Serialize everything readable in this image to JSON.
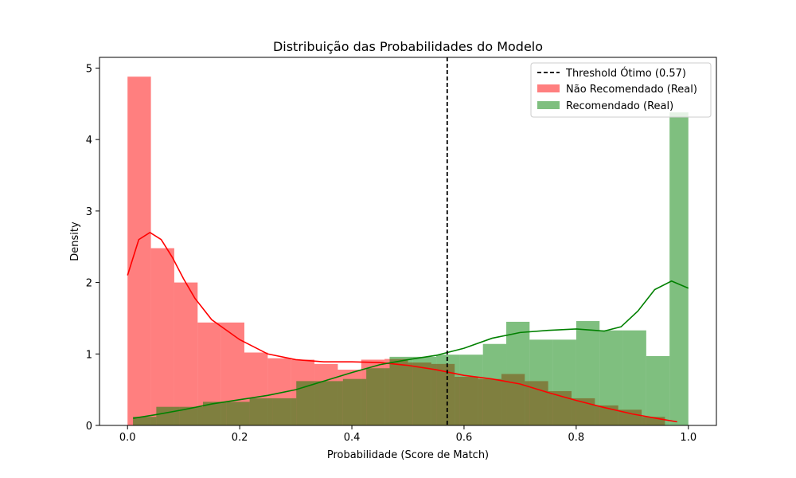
{
  "chart_data": {
    "type": "bar",
    "title": "Distribuição das Probabilidades do Modelo",
    "xlabel": "Probabilidade (Score de Match)",
    "ylabel": "Density",
    "xlim": [
      -0.05,
      1.05
    ],
    "ylim": [
      0,
      5.15
    ],
    "xticks": [
      0.0,
      0.2,
      0.4,
      0.6,
      0.8,
      1.0
    ],
    "yticks": [
      0,
      1,
      2,
      3,
      4,
      5
    ],
    "grid": false,
    "legend_position": "upper-right",
    "threshold": {
      "label": "Threshold Ótimo (0.57)",
      "value": 0.57,
      "color": "#000000"
    },
    "series": [
      {
        "name": "Não Recomendado (Real)",
        "color": "#ff0000",
        "bar_alpha": 0.5,
        "bin_edges": [
          0.0,
          0.0417,
          0.0833,
          0.125,
          0.1667,
          0.2083,
          0.25,
          0.2917,
          0.3333,
          0.375,
          0.4167,
          0.4583,
          0.5,
          0.5417,
          0.5833,
          0.625,
          0.6667,
          0.7083,
          0.75,
          0.7917,
          0.8333,
          0.875,
          0.9167,
          0.9583
        ],
        "values": [
          4.88,
          2.48,
          2.0,
          1.44,
          1.44,
          1.02,
          0.94,
          0.92,
          0.86,
          0.78,
          0.92,
          0.93,
          0.88,
          0.86,
          0.68,
          0.65,
          0.72,
          0.62,
          0.48,
          0.38,
          0.28,
          0.22,
          0.12
        ],
        "kde_x": [
          0.0,
          0.02,
          0.04,
          0.06,
          0.08,
          0.1,
          0.12,
          0.15,
          0.2,
          0.25,
          0.3,
          0.35,
          0.4,
          0.45,
          0.5,
          0.55,
          0.6,
          0.65,
          0.7,
          0.75,
          0.8,
          0.85,
          0.9,
          0.95,
          0.98
        ],
        "kde_y": [
          2.1,
          2.6,
          2.7,
          2.6,
          2.35,
          2.05,
          1.78,
          1.48,
          1.2,
          1.0,
          0.92,
          0.89,
          0.89,
          0.88,
          0.84,
          0.78,
          0.7,
          0.65,
          0.58,
          0.46,
          0.35,
          0.25,
          0.16,
          0.09,
          0.05
        ]
      },
      {
        "name": "Recomendado (Real)",
        "color": "#008000",
        "bar_alpha": 0.5,
        "bin_edges": [
          0.0097,
          0.0513,
          0.0929,
          0.1345,
          0.1761,
          0.2177,
          0.2593,
          0.3009,
          0.3425,
          0.3841,
          0.4257,
          0.4673,
          0.5089,
          0.5505,
          0.5921,
          0.6337,
          0.6753,
          0.7169,
          0.7585,
          0.8001,
          0.8417,
          0.8833,
          0.9249,
          0.9665,
          1.0
        ],
        "values": [
          0.12,
          0.26,
          0.26,
          0.33,
          0.33,
          0.38,
          0.38,
          0.62,
          0.62,
          0.65,
          0.8,
          0.96,
          0.96,
          0.99,
          0.99,
          1.14,
          1.45,
          1.2,
          1.2,
          1.46,
          1.33,
          1.33,
          0.97,
          4.38
        ],
        "kde_x": [
          0.01,
          0.05,
          0.1,
          0.15,
          0.2,
          0.25,
          0.3,
          0.35,
          0.4,
          0.45,
          0.5,
          0.55,
          0.6,
          0.65,
          0.7,
          0.75,
          0.8,
          0.85,
          0.88,
          0.91,
          0.94,
          0.97,
          1.0
        ],
        "kde_y": [
          0.1,
          0.15,
          0.22,
          0.3,
          0.36,
          0.42,
          0.5,
          0.62,
          0.74,
          0.85,
          0.92,
          0.98,
          1.08,
          1.22,
          1.3,
          1.33,
          1.35,
          1.32,
          1.38,
          1.6,
          1.9,
          2.02,
          1.92
        ]
      }
    ]
  }
}
